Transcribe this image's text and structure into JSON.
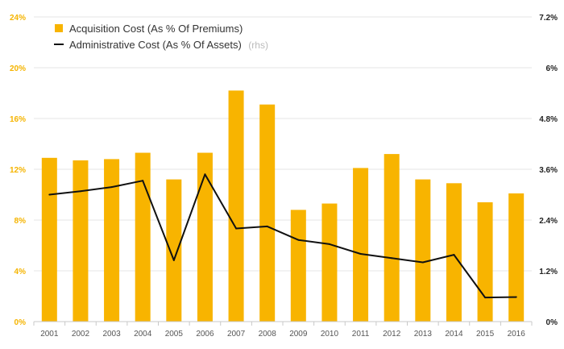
{
  "chart_data": {
    "type": "bar",
    "categories": [
      "2001",
      "2002",
      "2003",
      "2004",
      "2005",
      "2006",
      "2007",
      "2008",
      "2009",
      "2010",
      "2011",
      "2012",
      "2013",
      "2014",
      "2015",
      "2016"
    ],
    "series": [
      {
        "name": "Acquisition Cost (As % Of Premiums)",
        "type": "bar",
        "axis": "left",
        "color": "#f8b400",
        "values": [
          12.9,
          12.7,
          12.8,
          13.3,
          11.2,
          13.3,
          18.2,
          17.1,
          8.8,
          9.3,
          12.1,
          13.2,
          11.2,
          10.9,
          9.4,
          10.1
        ]
      },
      {
        "name": "Administrative Cost (As % Of Assets)",
        "name_suffix": "(rhs)",
        "type": "line",
        "axis": "right",
        "color": "#111111",
        "values": [
          3.0,
          3.08,
          3.18,
          3.33,
          1.45,
          3.48,
          2.2,
          2.25,
          1.93,
          1.83,
          1.6,
          1.5,
          1.4,
          1.58,
          0.57,
          0.58
        ]
      }
    ],
    "y_left": {
      "ylim": [
        0,
        24
      ],
      "ticks": [
        "0%",
        "4%",
        "8%",
        "12%",
        "16%",
        "20%",
        "24%"
      ],
      "tick_values": [
        0,
        4,
        8,
        12,
        16,
        20,
        24
      ],
      "color": "#f5b400"
    },
    "y_right": {
      "ylim": [
        0,
        7.2
      ],
      "ticks": [
        "0%",
        "1.2%",
        "2.4%",
        "3.6%",
        "4.8%",
        "6%",
        "7.2%"
      ],
      "tick_values": [
        0,
        1.2,
        2.4,
        3.6,
        4.8,
        6,
        7.2
      ],
      "color": "#222222"
    },
    "grid": true,
    "legend_position": "top-left",
    "title": "",
    "xlabel": "",
    "ylabel": ""
  }
}
